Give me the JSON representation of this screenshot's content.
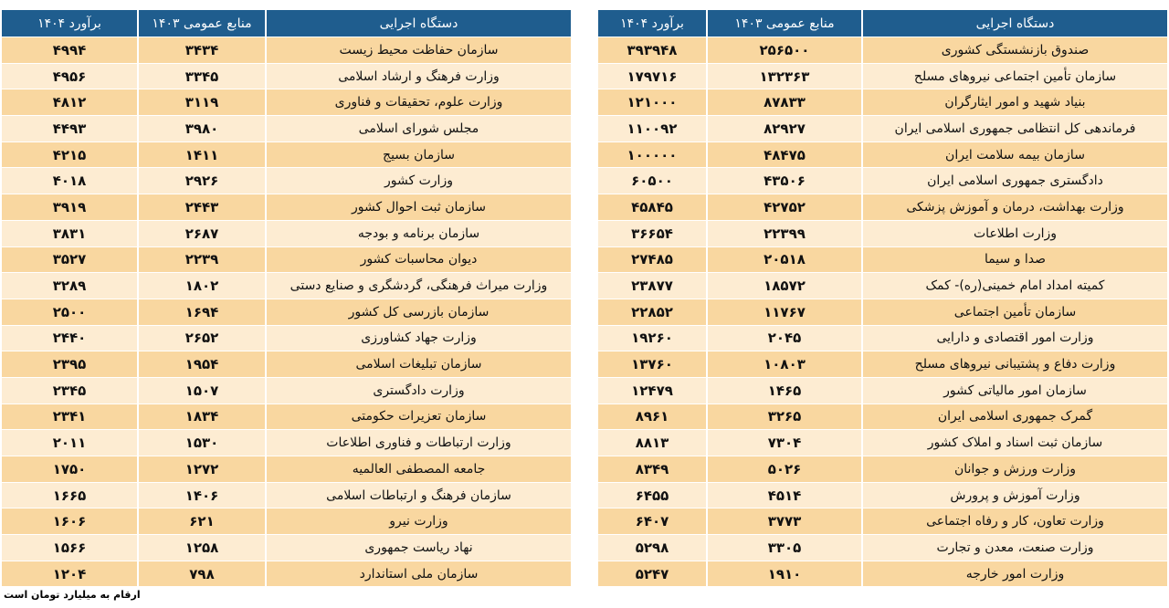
{
  "tables": [
    {
      "columns": [
        "دستگاه اجرایی",
        "منابع عمومی ۱۴۰۳",
        "برآورد ۱۴۰۴"
      ],
      "rows": [
        [
          "صندوق بازنشستگی کشوری",
          "۲۵۶۵۰۰",
          "۳۹۳۹۴۸"
        ],
        [
          "سازمان تأمین اجتماعی نیروهای مسلح",
          "۱۳۲۳۶۳",
          "۱۷۹۷۱۶"
        ],
        [
          "بنیاد شهید و امور ایثارگران",
          "۸۷۸۳۳",
          "۱۲۱۰۰۰"
        ],
        [
          "فرماندهی کل انتظامی جمهوری اسلامی ایران",
          "۸۲۹۲۷",
          "۱۱۰۰۹۲"
        ],
        [
          "سازمان بیمه سلامت ایران",
          "۴۸۴۷۵",
          "۱۰۰۰۰۰"
        ],
        [
          "دادگستری جمهوری اسلامی ایران",
          "۴۳۵۰۶",
          "۶۰۵۰۰"
        ],
        [
          "وزارت بهداشت، درمان و آموزش پزشکی",
          "۴۲۷۵۲",
          "۴۵۸۴۵"
        ],
        [
          "وزارت اطلاعات",
          "۲۲۳۹۹",
          "۳۶۶۵۴"
        ],
        [
          "صدا و سیما",
          "۲۰۵۱۸",
          "۲۷۴۸۵"
        ],
        [
          "کمیته امداد امام خمینی(ره)- کمک",
          "۱۸۵۷۲",
          "۲۳۸۷۷"
        ],
        [
          "سازمان تأمین اجتماعی",
          "۱۱۷۶۷",
          "۲۲۸۵۲"
        ],
        [
          "وزارت امور اقتصادی و دارایی",
          "۲۰۴۵",
          "۱۹۲۶۰"
        ],
        [
          "وزارت دفاع و پشتیبانی نیروهای مسلح",
          "۱۰۸۰۳",
          "۱۳۷۶۰"
        ],
        [
          "سازمان امور مالیاتی کشور",
          "۱۴۶۵",
          "۱۲۴۷۹"
        ],
        [
          "گمرک جمهوری اسلامی ایران",
          "۳۲۶۵",
          "۸۹۶۱"
        ],
        [
          "سازمان ثبت اسناد و املاک کشور",
          "۷۳۰۴",
          "۸۸۱۳"
        ],
        [
          "وزارت ورزش و جوانان",
          "۵۰۲۶",
          "۸۳۴۹"
        ],
        [
          "وزارت آموزش و پرورش",
          "۴۵۱۴",
          "۶۴۵۵"
        ],
        [
          "وزارت تعاون، کار و رفاه اجتماعی",
          "۳۷۷۳",
          "۶۴۰۷"
        ],
        [
          "وزارت صنعت، معدن و تجارت",
          "۳۳۰۵",
          "۵۲۹۸"
        ],
        [
          "وزارت امور خارجه",
          "۱۹۱۰",
          "۵۲۴۷"
        ]
      ]
    },
    {
      "columns": [
        "دستگاه اجرایی",
        "منابع عمومی ۱۴۰۳",
        "برآورد ۱۴۰۴"
      ],
      "rows": [
        [
          "سازمان حفاظت محیط زیست",
          "۳۴۳۴",
          "۴۹۹۴"
        ],
        [
          "وزارت فرهنگ و ارشاد اسلامی",
          "۳۳۴۵",
          "۴۹۵۶"
        ],
        [
          "وزارت علوم، تحقیقات و فناوری",
          "۳۱۱۹",
          "۴۸۱۲"
        ],
        [
          "مجلس شورای اسلامی",
          "۳۹۸۰",
          "۴۴۹۳"
        ],
        [
          "سازمان بسیج",
          "۱۴۱۱",
          "۴۲۱۵"
        ],
        [
          "وزارت کشور",
          "۲۹۲۶",
          "۴۰۱۸"
        ],
        [
          "سازمان ثبت احوال کشور",
          "۲۴۴۳",
          "۳۹۱۹"
        ],
        [
          "سازمان برنامه و بودجه",
          "۲۶۸۷",
          "۳۸۳۱"
        ],
        [
          "دیوان محاسبات کشور",
          "۲۲۳۹",
          "۳۵۲۷"
        ],
        [
          "وزارت میراث فرهنگی، گردشگری و صنایع دستی",
          "۱۸۰۲",
          "۳۲۸۹"
        ],
        [
          "سازمان بازرسی کل کشور",
          "۱۶۹۴",
          "۲۵۰۰"
        ],
        [
          "وزارت جهاد کشاورزی",
          "۲۶۵۲",
          "۲۴۴۰"
        ],
        [
          "سازمان تبلیغات اسلامی",
          "۱۹۵۴",
          "۲۳۹۵"
        ],
        [
          "وزارت دادگستری",
          "۱۵۰۷",
          "۲۳۴۵"
        ],
        [
          "سازمان تعزیرات حکومتی",
          "۱۸۳۴",
          "۲۳۴۱"
        ],
        [
          "وزارت ارتباطات و فناوری اطلاعات",
          "۱۵۳۰",
          "۲۰۱۱"
        ],
        [
          "جامعه المصطفی العالمیه",
          "۱۲۷۲",
          "۱۷۵۰"
        ],
        [
          "سازمان فرهنگ و ارتباطات اسلامی",
          "۱۴۰۶",
          "۱۶۶۵"
        ],
        [
          "وزارت نیرو",
          "۶۲۱",
          "۱۶۰۶"
        ],
        [
          "نهاد ریاست جمهوری",
          "۱۲۵۸",
          "۱۵۶۶"
        ],
        [
          "سازمان ملی استاندارد",
          "۷۹۸",
          "۱۲۰۴"
        ]
      ]
    }
  ],
  "footnote": "ارقام به میلیارد تومان است"
}
